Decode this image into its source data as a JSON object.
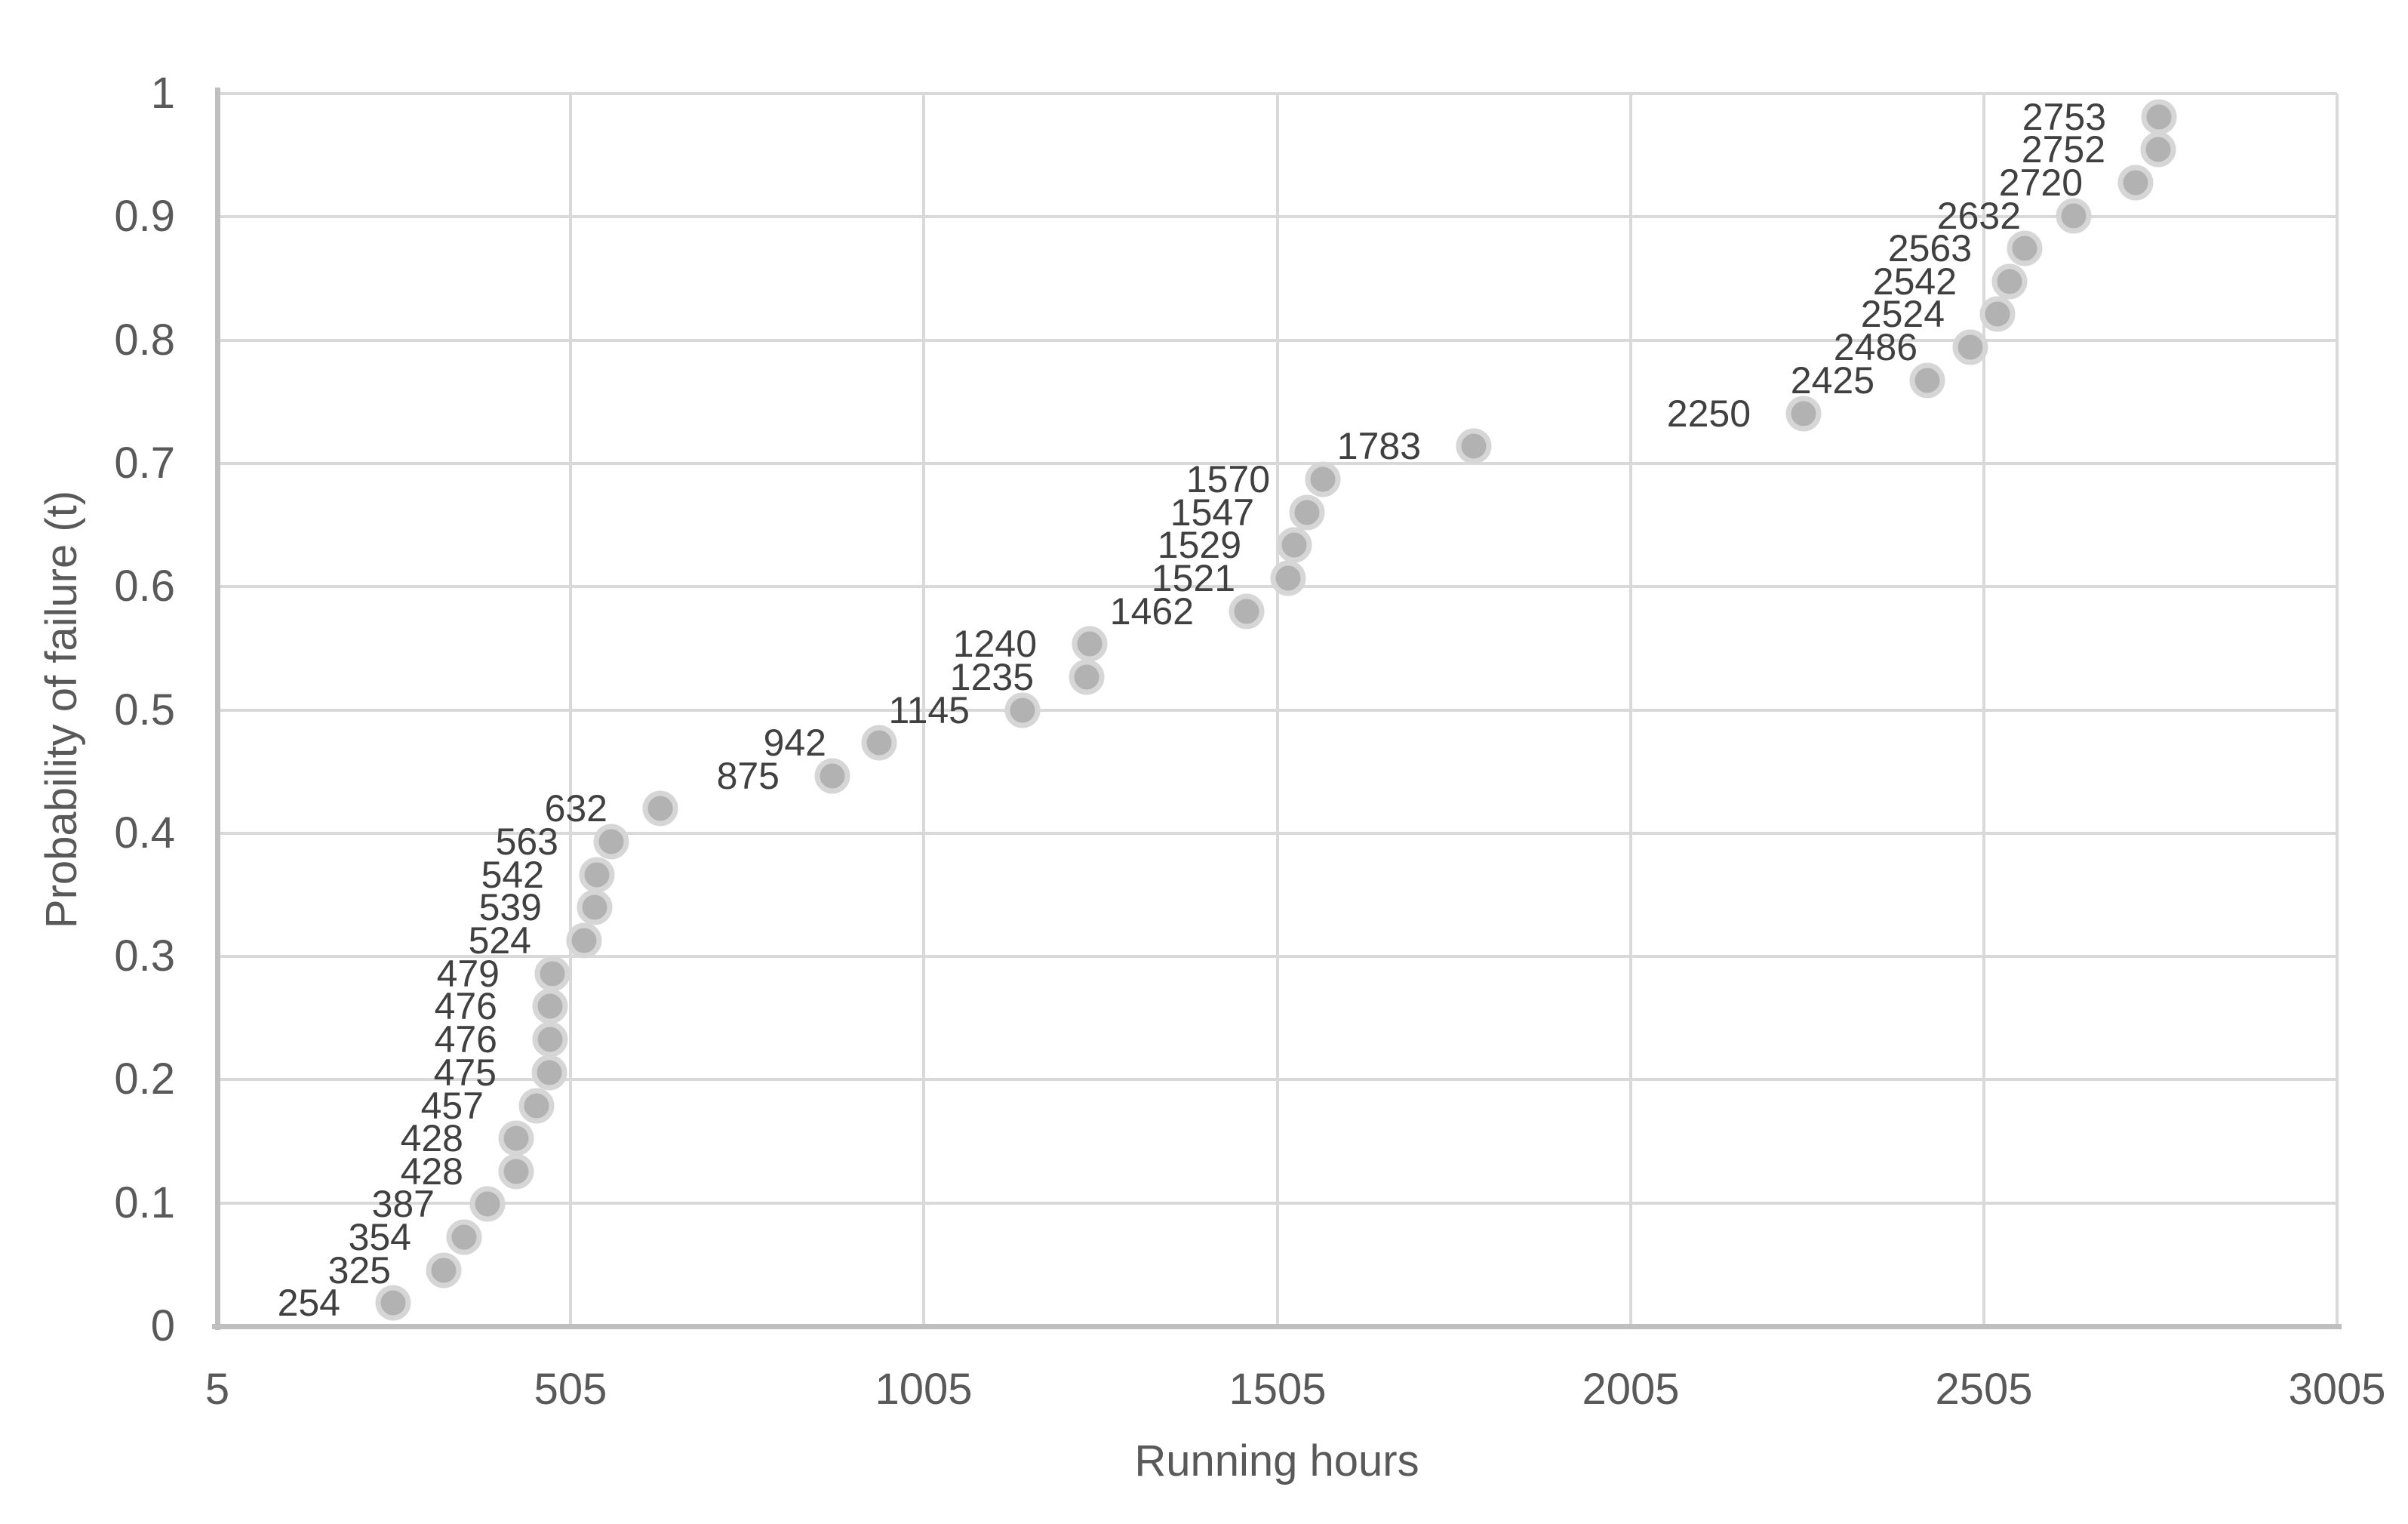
{
  "chart_data": {
    "type": "scatter",
    "title": "",
    "xlabel": "Running hours",
    "ylabel": "Probability of failure (t)",
    "xlim": [
      5,
      3005
    ],
    "ylim": [
      0,
      1
    ],
    "grid": true,
    "legend": false,
    "x_ticks": [
      5,
      505,
      1005,
      1505,
      2005,
      2505,
      3005
    ],
    "x_tick_labels": [
      "5",
      "505",
      "1005",
      "1505",
      "2005",
      "2505",
      "3005"
    ],
    "y_ticks": [
      0,
      0.1,
      0.2,
      0.3,
      0.4,
      0.5,
      0.6,
      0.7,
      0.8,
      0.9,
      1
    ],
    "y_tick_labels": [
      "0",
      "0.1",
      "0.2",
      "0.3",
      "0.4",
      "0.5",
      "0.6",
      "0.7",
      "0.8",
      "0.9",
      "1"
    ],
    "colors": {
      "marker_fill": "#b2b2b2",
      "marker_ring": "#d6d6d6",
      "gridline": "#d9d9d9",
      "axis_line": "#bfbfbf",
      "tick_text": "#595959",
      "data_label_text": "#404040"
    },
    "points": [
      {
        "label": "254",
        "x": 254,
        "y": 0.0187
      },
      {
        "label": "325",
        "x": 325,
        "y": 0.0455
      },
      {
        "label": "354",
        "x": 354,
        "y": 0.0722
      },
      {
        "label": "387",
        "x": 387,
        "y": 0.0989
      },
      {
        "label": "428",
        "x": 428,
        "y": 0.1257
      },
      {
        "label": "428",
        "x": 428,
        "y": 0.1524
      },
      {
        "label": "457",
        "x": 457,
        "y": 0.1791
      },
      {
        "label": "475",
        "x": 475,
        "y": 0.2059
      },
      {
        "label": "476",
        "x": 476,
        "y": 0.2326
      },
      {
        "label": "476",
        "x": 476,
        "y": 0.2594
      },
      {
        "label": "479",
        "x": 479,
        "y": 0.2861
      },
      {
        "label": "524",
        "x": 524,
        "y": 0.3128
      },
      {
        "label": "539",
        "x": 539,
        "y": 0.3396
      },
      {
        "label": "542",
        "x": 542,
        "y": 0.3663
      },
      {
        "label": "563",
        "x": 563,
        "y": 0.393
      },
      {
        "label": "632",
        "x": 632,
        "y": 0.4198
      },
      {
        "label": "875",
        "x": 875,
        "y": 0.4465
      },
      {
        "label": "942",
        "x": 942,
        "y": 0.4733
      },
      {
        "label": "1145",
        "x": 1145,
        "y": 0.5
      },
      {
        "label": "1235",
        "x": 1235,
        "y": 0.5267
      },
      {
        "label": "1240",
        "x": 1240,
        "y": 0.5535
      },
      {
        "label": "1462",
        "x": 1462,
        "y": 0.5802
      },
      {
        "label": "1521",
        "x": 1521,
        "y": 0.607
      },
      {
        "label": "1529",
        "x": 1529,
        "y": 0.6337
      },
      {
        "label": "1547",
        "x": 1547,
        "y": 0.6604
      },
      {
        "label": "1570",
        "x": 1570,
        "y": 0.6872
      },
      {
        "label": "1783",
        "x": 1783,
        "y": 0.7139
      },
      {
        "label": "2250",
        "x": 2250,
        "y": 0.7406
      },
      {
        "label": "2425",
        "x": 2425,
        "y": 0.7674
      },
      {
        "label": "2486",
        "x": 2486,
        "y": 0.7941
      },
      {
        "label": "2524",
        "x": 2524,
        "y": 0.8209
      },
      {
        "label": "2542",
        "x": 2542,
        "y": 0.8476
      },
      {
        "label": "2563",
        "x": 2563,
        "y": 0.8743
      },
      {
        "label": "2632",
        "x": 2632,
        "y": 0.9011
      },
      {
        "label": "2720",
        "x": 2720,
        "y": 0.9278
      },
      {
        "label": "2752",
        "x": 2752,
        "y": 0.9545
      },
      {
        "label": "2753",
        "x": 2753,
        "y": 0.9813
      }
    ]
  }
}
